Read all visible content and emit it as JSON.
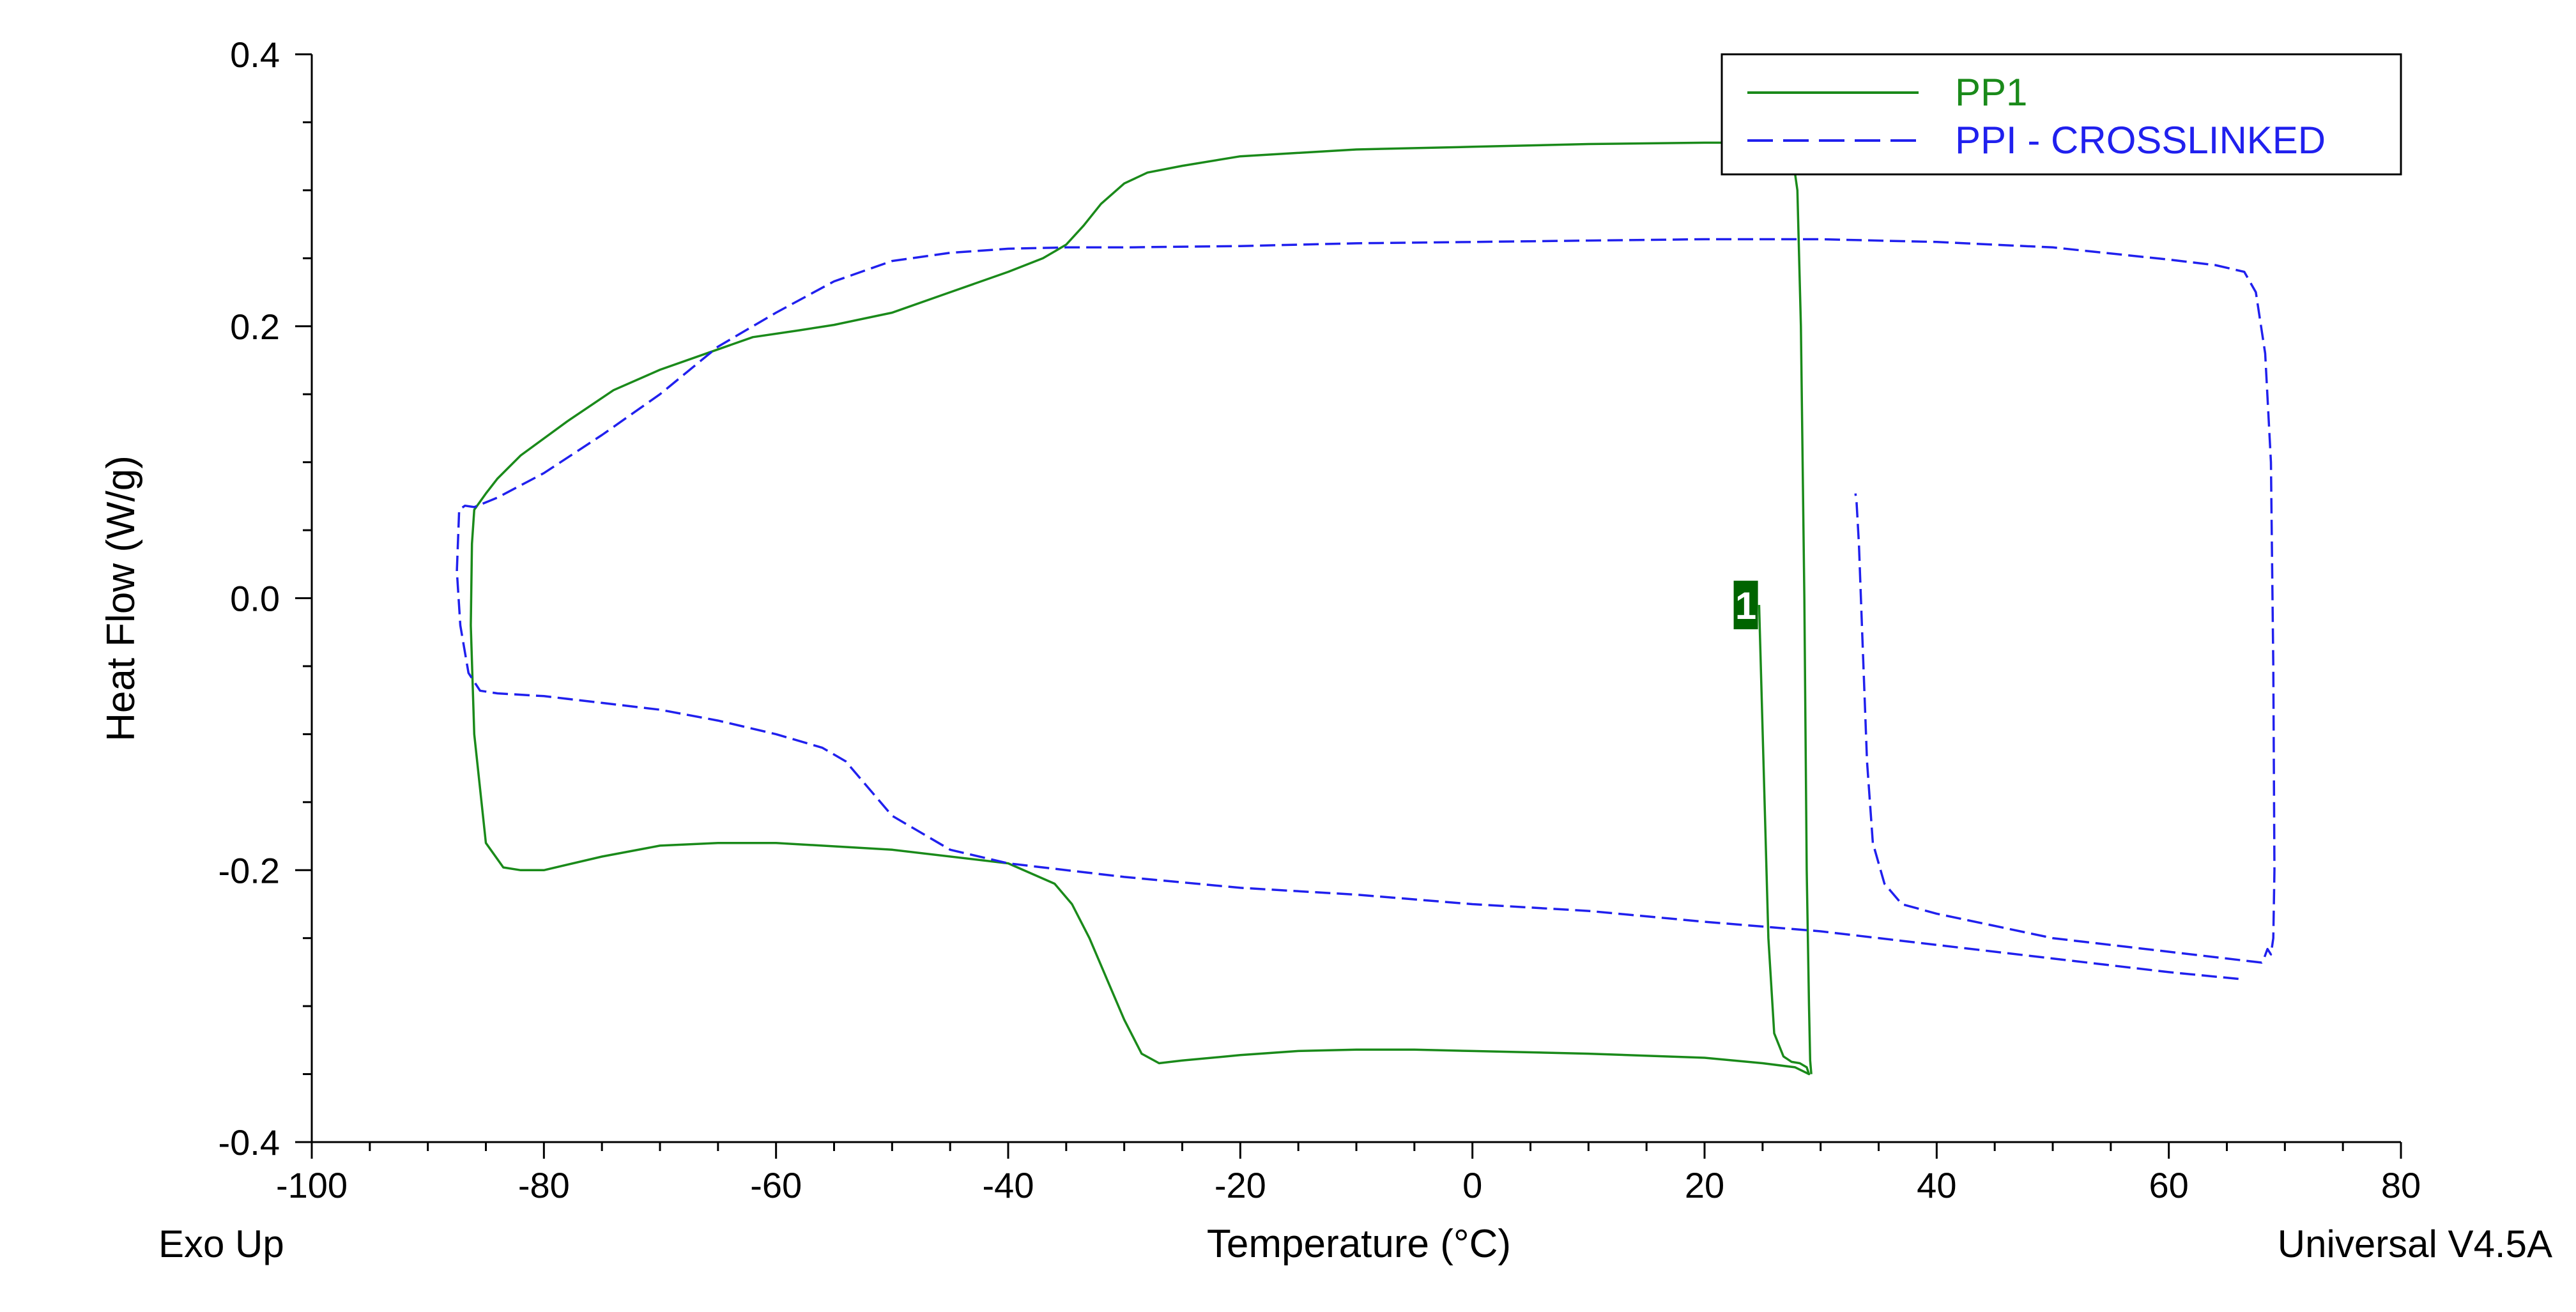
{
  "chart_data": {
    "type": "line",
    "title": "",
    "xlabel": "Temperature (°C)",
    "ylabel": "Heat Flow (W/g)",
    "xlim": [
      -100,
      80
    ],
    "ylim": [
      -0.4,
      0.4
    ],
    "x_ticks": [
      "-100",
      "-80",
      "-60",
      "-40",
      "-20",
      "0",
      "20",
      "40",
      "60",
      "80"
    ],
    "y_ticks": [
      "-0.4",
      "-0.2",
      "0.0",
      "0.2",
      "0.4"
    ],
    "grid": false,
    "legend_position": "top-right",
    "corner_left": "Exo Up",
    "corner_right": "Universal V4.5A",
    "marker_label": "1",
    "colors": {
      "PP1": "#1a8a1a",
      "PPI - CROSSLINKED": "#2020ee",
      "marker_bg": "#006400"
    },
    "series": [
      {
        "name": "PP1",
        "style": "solid",
        "x": [
          24.7,
          25.5,
          26.0,
          26.8,
          27.5,
          28.2,
          28.8,
          29.0,
          27.8,
          25.0,
          20.0,
          10.0,
          0.0,
          -5.0,
          -10.0,
          -15.0,
          -20.0,
          -25.0,
          -27.0,
          -28.5,
          -30.0,
          -31.5,
          -33.0,
          -34.5,
          -36.0,
          -40.0,
          -50.0,
          -60.0,
          -65.0,
          -70.0,
          -75.0,
          -80.0,
          -82.0,
          -83.5,
          -85.0,
          -86.0,
          -86.3,
          -86.2,
          -86.0,
          -85.0,
          -84.0,
          -82.0,
          -78.0,
          -74.0,
          -70.0,
          -66.0,
          -62.0,
          -58.0,
          -55.0,
          -50.0,
          -45.0,
          -40.0,
          -37.0,
          -35.0,
          -33.5,
          -32.0,
          -30.0,
          -28.0,
          -25.0,
          -20.0,
          -10.0,
          0.0,
          10.0,
          20.0,
          26.0,
          27.5,
          28.0,
          28.3,
          28.6,
          28.8,
          29.0,
          29.1,
          29.2
        ],
        "y": [
          -0.005,
          -0.25,
          -0.32,
          -0.337,
          -0.341,
          -0.342,
          -0.345,
          -0.35,
          -0.345,
          -0.342,
          -0.338,
          -0.335,
          -0.333,
          -0.332,
          -0.332,
          -0.333,
          -0.336,
          -0.34,
          -0.342,
          -0.335,
          -0.31,
          -0.28,
          -0.25,
          -0.225,
          -0.21,
          -0.195,
          -0.185,
          -0.18,
          -0.18,
          -0.182,
          -0.19,
          -0.2,
          -0.2,
          -0.198,
          -0.18,
          -0.1,
          -0.02,
          0.04,
          0.065,
          0.077,
          0.088,
          0.105,
          0.13,
          0.153,
          0.168,
          0.18,
          0.192,
          0.197,
          0.201,
          0.21,
          0.225,
          0.24,
          0.25,
          0.26,
          0.274,
          0.29,
          0.305,
          0.313,
          0.318,
          0.325,
          0.33,
          0.332,
          0.334,
          0.335,
          0.335,
          0.33,
          0.3,
          0.2,
          0.0,
          -0.2,
          -0.3,
          -0.34,
          -0.35
        ]
      },
      {
        "name": "PPI - CROSSLINKED",
        "style": "dashed",
        "x": [
          66.0,
          60.0,
          50.0,
          40.0,
          30.0,
          20.0,
          10.0,
          0.0,
          -10.0,
          -20.0,
          -30.0,
          -40.0,
          -45.0,
          -48.0,
          -50.0,
          -52.0,
          -54.0,
          -56.0,
          -60.0,
          -65.0,
          -70.0,
          -75.0,
          -80.0,
          -84.0,
          -85.5,
          -86.5,
          -87.2,
          -87.5,
          -87.3,
          -86.8,
          -86.0,
          -84.0,
          -80.0,
          -75.0,
          -70.0,
          -65.0,
          -60.0,
          -55.0,
          -50.0,
          -45.0,
          -40.0,
          -35.0,
          -30.0,
          -20.0,
          -10.0,
          0.0,
          10.0,
          20.0,
          30.0,
          40.0,
          50.0,
          60.0,
          64.0,
          66.5,
          67.5,
          68.3,
          68.8,
          69.0,
          69.1,
          69.0,
          68.8,
          68.5,
          68.2,
          68.0,
          60.0,
          50.0,
          40.0,
          37.0,
          35.5,
          34.5,
          34.0,
          33.6,
          33.3,
          33.1,
          33.0
        ],
        "y": [
          -0.28,
          -0.275,
          -0.265,
          -0.255,
          -0.245,
          -0.238,
          -0.23,
          -0.225,
          -0.218,
          -0.213,
          -0.205,
          -0.195,
          -0.185,
          -0.17,
          -0.16,
          -0.14,
          -0.12,
          -0.11,
          -0.1,
          -0.09,
          -0.082,
          -0.077,
          -0.072,
          -0.07,
          -0.068,
          -0.055,
          -0.02,
          0.02,
          0.065,
          0.068,
          0.067,
          0.074,
          0.092,
          0.12,
          0.15,
          0.185,
          0.21,
          0.233,
          0.248,
          0.254,
          0.257,
          0.258,
          0.258,
          0.259,
          0.261,
          0.262,
          0.263,
          0.264,
          0.264,
          0.262,
          0.258,
          0.249,
          0.245,
          0.24,
          0.225,
          0.18,
          0.1,
          -0.05,
          -0.2,
          -0.25,
          -0.262,
          -0.258,
          -0.265,
          -0.268,
          -0.26,
          -0.25,
          -0.232,
          -0.225,
          -0.21,
          -0.18,
          -0.12,
          -0.03,
          0.04,
          0.07,
          0.077
        ]
      }
    ],
    "marker": {
      "x": 23.5,
      "y": -0.005
    }
  }
}
